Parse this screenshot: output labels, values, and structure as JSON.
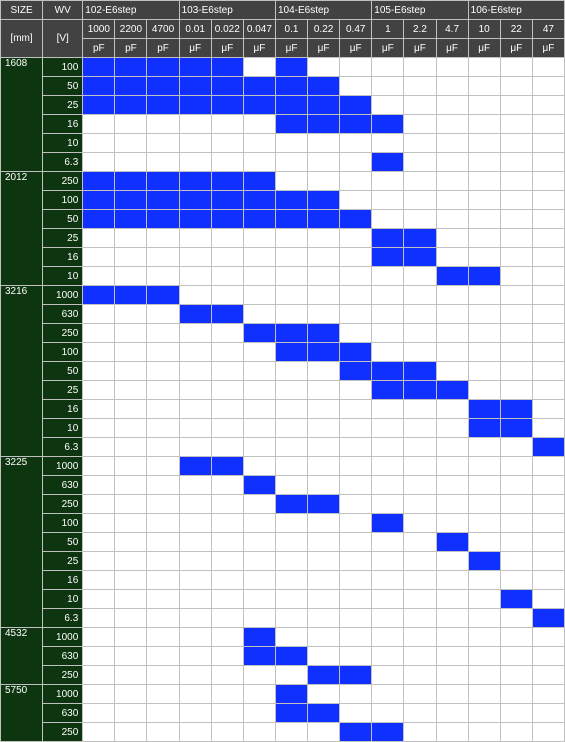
{
  "colors": {
    "header_bg": "#424242",
    "header_fg": "#ffffff",
    "rowhdr_bg": "#0d3510",
    "rowhdr_fg": "#ffffff",
    "fill": "#1030ff",
    "grid": "#c0c0c0",
    "bg": "#ffffff"
  },
  "header": {
    "size_label": "SIZE",
    "size_unit": "[mm]",
    "wv_label": "WV",
    "wv_unit": "[V]",
    "groups": [
      {
        "label": "102-E6step",
        "caps": [
          {
            "v": "1000",
            "u": "pF"
          },
          {
            "v": "2200",
            "u": "pF"
          },
          {
            "v": "4700",
            "u": "pF"
          }
        ]
      },
      {
        "label": "103-E6step",
        "caps": [
          {
            "v": "0.01",
            "u": "μF"
          },
          {
            "v": "0.022",
            "u": "μF"
          },
          {
            "v": "0.047",
            "u": "μF"
          }
        ]
      },
      {
        "label": "104-E6step",
        "caps": [
          {
            "v": "0.1",
            "u": "μF"
          },
          {
            "v": "0.22",
            "u": "μF"
          },
          {
            "v": "0.47",
            "u": "μF"
          }
        ]
      },
      {
        "label": "105-E6step",
        "caps": [
          {
            "v": "1",
            "u": "μF"
          },
          {
            "v": "2.2",
            "u": "μF"
          },
          {
            "v": "4.7",
            "u": "μF"
          }
        ]
      },
      {
        "label": "106-E6step",
        "caps": [
          {
            "v": "10",
            "u": "μF"
          },
          {
            "v": "22",
            "u": "μF"
          },
          {
            "v": "47",
            "u": "μF"
          }
        ]
      }
    ]
  },
  "sizes": [
    {
      "size": "1608",
      "rows": [
        {
          "wv": "100",
          "cells": [
            1,
            1,
            1,
            1,
            1,
            0,
            1,
            0,
            0,
            0,
            0,
            0,
            0,
            0,
            0
          ]
        },
        {
          "wv": "50",
          "cells": [
            1,
            1,
            1,
            1,
            1,
            1,
            1,
            1,
            0,
            0,
            0,
            0,
            0,
            0,
            0
          ]
        },
        {
          "wv": "25",
          "cells": [
            1,
            1,
            1,
            1,
            1,
            1,
            1,
            1,
            1,
            0,
            0,
            0,
            0,
            0,
            0
          ]
        },
        {
          "wv": "16",
          "cells": [
            0,
            0,
            0,
            0,
            0,
            0,
            1,
            1,
            1,
            1,
            0,
            0,
            0,
            0,
            0
          ]
        },
        {
          "wv": "10",
          "cells": [
            0,
            0,
            0,
            0,
            0,
            0,
            0,
            0,
            0,
            0,
            0,
            0,
            0,
            0,
            0
          ]
        },
        {
          "wv": "6.3",
          "cells": [
            0,
            0,
            0,
            0,
            0,
            0,
            0,
            0,
            0,
            1,
            0,
            0,
            0,
            0,
            0
          ]
        }
      ]
    },
    {
      "size": "2012",
      "rows": [
        {
          "wv": "250",
          "cells": [
            1,
            1,
            1,
            1,
            1,
            1,
            0,
            0,
            0,
            0,
            0,
            0,
            0,
            0,
            0
          ]
        },
        {
          "wv": "100",
          "cells": [
            1,
            1,
            1,
            1,
            1,
            1,
            1,
            1,
            0,
            0,
            0,
            0,
            0,
            0,
            0
          ]
        },
        {
          "wv": "50",
          "cells": [
            1,
            1,
            1,
            1,
            1,
            1,
            1,
            1,
            1,
            0,
            0,
            0,
            0,
            0,
            0
          ]
        },
        {
          "wv": "25",
          "cells": [
            0,
            0,
            0,
            0,
            0,
            0,
            0,
            0,
            0,
            1,
            1,
            0,
            0,
            0,
            0
          ]
        },
        {
          "wv": "16",
          "cells": [
            0,
            0,
            0,
            0,
            0,
            0,
            0,
            0,
            0,
            1,
            1,
            0,
            0,
            0,
            0
          ]
        },
        {
          "wv": "10",
          "cells": [
            0,
            0,
            0,
            0,
            0,
            0,
            0,
            0,
            0,
            0,
            0,
            1,
            1,
            0,
            0
          ]
        }
      ]
    },
    {
      "size": "3216",
      "rows": [
        {
          "wv": "1000",
          "cells": [
            1,
            1,
            1,
            0,
            0,
            0,
            0,
            0,
            0,
            0,
            0,
            0,
            0,
            0,
            0
          ]
        },
        {
          "wv": "630",
          "cells": [
            0,
            0,
            0,
            1,
            1,
            0,
            0,
            0,
            0,
            0,
            0,
            0,
            0,
            0,
            0
          ]
        },
        {
          "wv": "250",
          "cells": [
            0,
            0,
            0,
            0,
            0,
            1,
            1,
            1,
            0,
            0,
            0,
            0,
            0,
            0,
            0
          ]
        },
        {
          "wv": "100",
          "cells": [
            0,
            0,
            0,
            0,
            0,
            0,
            1,
            1,
            1,
            0,
            0,
            0,
            0,
            0,
            0
          ]
        },
        {
          "wv": "50",
          "cells": [
            0,
            0,
            0,
            0,
            0,
            0,
            0,
            0,
            1,
            1,
            1,
            0,
            0,
            0,
            0
          ]
        },
        {
          "wv": "25",
          "cells": [
            0,
            0,
            0,
            0,
            0,
            0,
            0,
            0,
            0,
            1,
            1,
            1,
            0,
            0,
            0
          ]
        },
        {
          "wv": "16",
          "cells": [
            0,
            0,
            0,
            0,
            0,
            0,
            0,
            0,
            0,
            0,
            0,
            0,
            1,
            1,
            0
          ]
        },
        {
          "wv": "10",
          "cells": [
            0,
            0,
            0,
            0,
            0,
            0,
            0,
            0,
            0,
            0,
            0,
            0,
            1,
            1,
            0
          ]
        },
        {
          "wv": "6.3",
          "cells": [
            0,
            0,
            0,
            0,
            0,
            0,
            0,
            0,
            0,
            0,
            0,
            0,
            0,
            0,
            1
          ]
        }
      ]
    },
    {
      "size": "3225",
      "rows": [
        {
          "wv": "1000",
          "cells": [
            0,
            0,
            0,
            1,
            1,
            0,
            0,
            0,
            0,
            0,
            0,
            0,
            0,
            0,
            0
          ]
        },
        {
          "wv": "630",
          "cells": [
            0,
            0,
            0,
            0,
            0,
            1,
            0,
            0,
            0,
            0,
            0,
            0,
            0,
            0,
            0
          ]
        },
        {
          "wv": "250",
          "cells": [
            0,
            0,
            0,
            0,
            0,
            0,
            1,
            1,
            0,
            0,
            0,
            0,
            0,
            0,
            0
          ]
        },
        {
          "wv": "100",
          "cells": [
            0,
            0,
            0,
            0,
            0,
            0,
            0,
            0,
            0,
            1,
            0,
            0,
            0,
            0,
            0
          ]
        },
        {
          "wv": "50",
          "cells": [
            0,
            0,
            0,
            0,
            0,
            0,
            0,
            0,
            0,
            0,
            0,
            1,
            0,
            0,
            0
          ]
        },
        {
          "wv": "25",
          "cells": [
            0,
            0,
            0,
            0,
            0,
            0,
            0,
            0,
            0,
            0,
            0,
            0,
            1,
            0,
            0
          ]
        },
        {
          "wv": "16",
          "cells": [
            0,
            0,
            0,
            0,
            0,
            0,
            0,
            0,
            0,
            0,
            0,
            0,
            0,
            0,
            0
          ]
        },
        {
          "wv": "10",
          "cells": [
            0,
            0,
            0,
            0,
            0,
            0,
            0,
            0,
            0,
            0,
            0,
            0,
            0,
            1,
            0
          ]
        },
        {
          "wv": "6.3",
          "cells": [
            0,
            0,
            0,
            0,
            0,
            0,
            0,
            0,
            0,
            0,
            0,
            0,
            0,
            0,
            1
          ]
        }
      ]
    },
    {
      "size": "4532",
      "rows": [
        {
          "wv": "1000",
          "cells": [
            0,
            0,
            0,
            0,
            0,
            1,
            0,
            0,
            0,
            0,
            0,
            0,
            0,
            0,
            0
          ]
        },
        {
          "wv": "630",
          "cells": [
            0,
            0,
            0,
            0,
            0,
            1,
            1,
            0,
            0,
            0,
            0,
            0,
            0,
            0,
            0
          ]
        },
        {
          "wv": "250",
          "cells": [
            0,
            0,
            0,
            0,
            0,
            0,
            0,
            1,
            1,
            0,
            0,
            0,
            0,
            0,
            0
          ]
        }
      ]
    },
    {
      "size": "5750",
      "rows": [
        {
          "wv": "1000",
          "cells": [
            0,
            0,
            0,
            0,
            0,
            0,
            1,
            0,
            0,
            0,
            0,
            0,
            0,
            0,
            0
          ]
        },
        {
          "wv": "630",
          "cells": [
            0,
            0,
            0,
            0,
            0,
            0,
            1,
            1,
            0,
            0,
            0,
            0,
            0,
            0,
            0
          ]
        },
        {
          "wv": "250",
          "cells": [
            0,
            0,
            0,
            0,
            0,
            0,
            0,
            0,
            1,
            1,
            0,
            0,
            0,
            0,
            0
          ]
        }
      ]
    }
  ]
}
